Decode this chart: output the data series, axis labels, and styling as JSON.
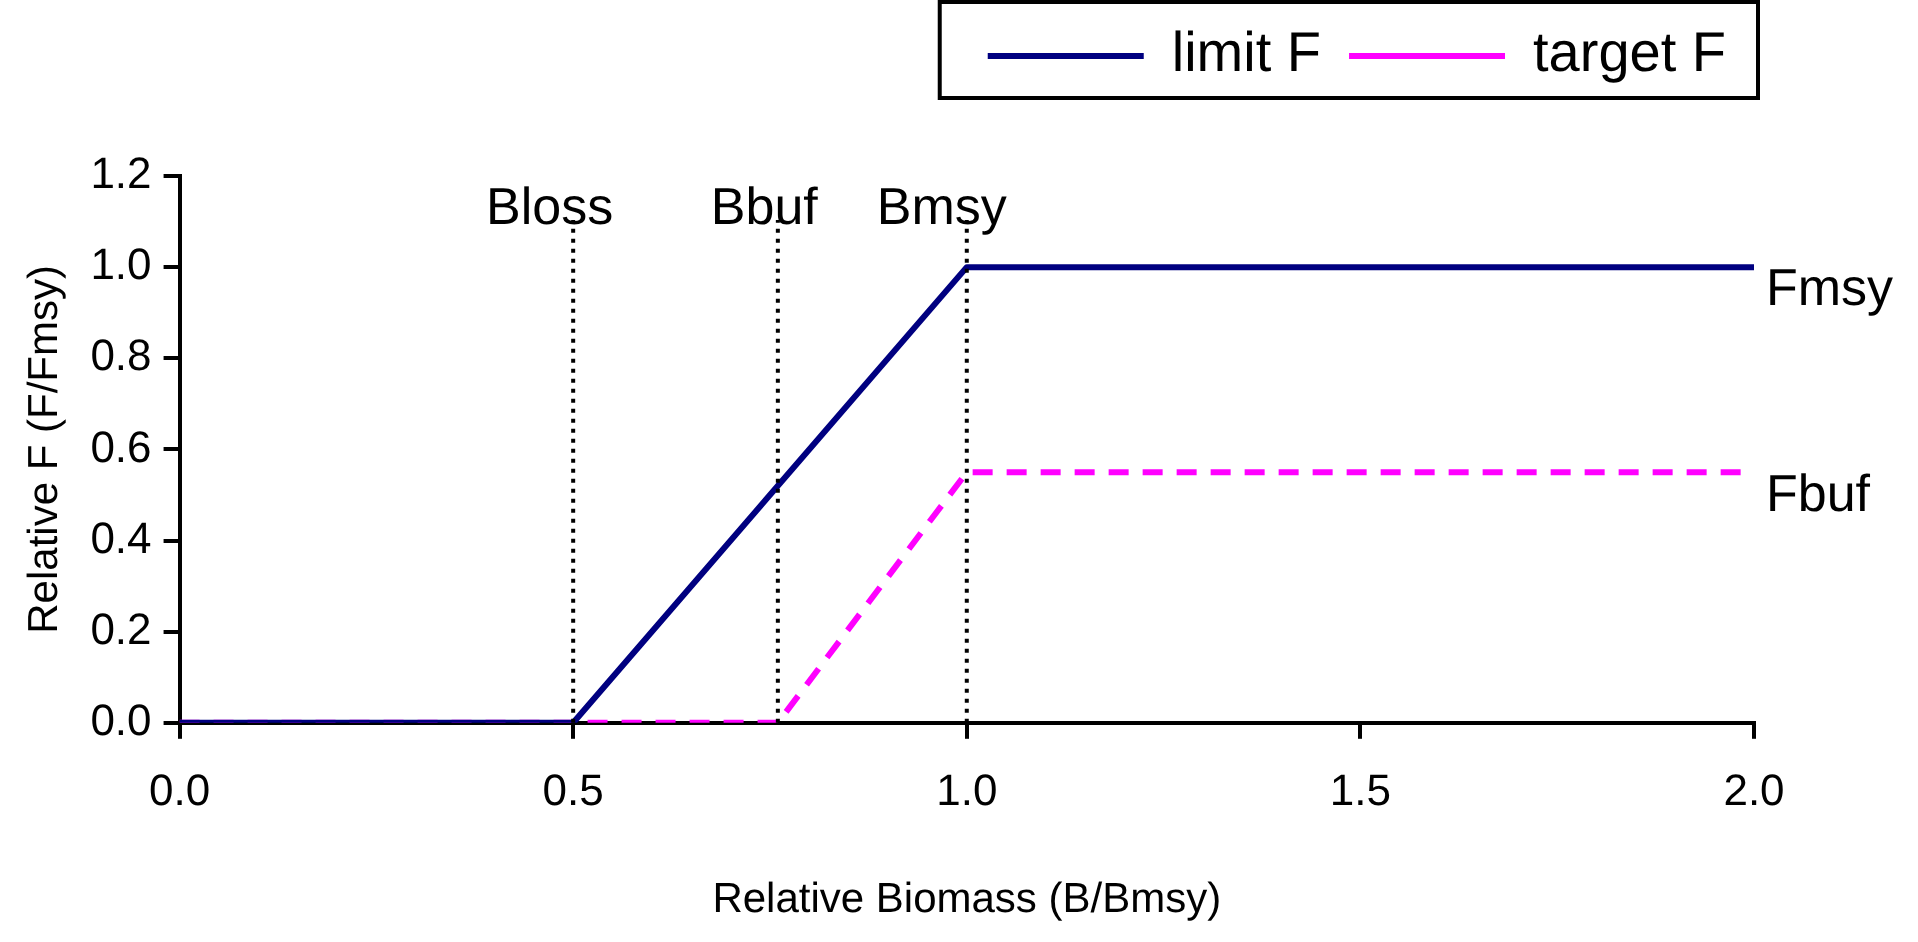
{
  "chart_data": {
    "type": "line",
    "xlabel": "Relative Biomass (B/Bmsy)",
    "ylabel": "Relative F (F/Fmsy)",
    "series": [
      {
        "name": "limit F",
        "color": "#000080",
        "x": [
          0,
          0.5,
          1.0,
          2.0
        ],
        "values": [
          0,
          0,
          1.0,
          1.0
        ],
        "line_style": "solid"
      },
      {
        "name": "target F",
        "color": "#ff00ff",
        "x": [
          0,
          0.76,
          1.0,
          2.0
        ],
        "values": [
          0,
          0,
          0.55,
          0.55
        ],
        "line_style": "dashed"
      }
    ],
    "xlim": [
      0,
      2.0
    ],
    "xticks": [
      {
        "value": 0,
        "label": "0.0"
      },
      {
        "value": 0.5,
        "label": "0.5"
      },
      {
        "value": 1,
        "label": "1.0"
      },
      {
        "value": 1.5,
        "label": "1.5"
      },
      {
        "value": 2,
        "label": "2.0"
      }
    ],
    "ylim": [
      0,
      1.2
    ],
    "yticks": [
      {
        "value": 0,
        "label": "0.0"
      },
      {
        "value": 0.2,
        "label": "0.2"
      },
      {
        "value": 0.4,
        "label": "0.4"
      },
      {
        "value": 0.6,
        "label": "0.6"
      },
      {
        "value": 0.8,
        "label": "0.8"
      },
      {
        "value": 1,
        "label": "1.0"
      },
      {
        "value": 1.2,
        "label": "1.2"
      }
    ],
    "ref_lines": [
      {
        "axis": "x",
        "value": 0.5,
        "label": "Bloss",
        "color": "#000000",
        "line_style": "dotted"
      },
      {
        "axis": "x",
        "value": 0.76,
        "label": "Bbuf",
        "color": "#000000",
        "line_style": "dotted"
      },
      {
        "axis": "x",
        "value": 1.0,
        "label": "Bmsy",
        "color": "#000000",
        "line_style": "dotted"
      }
    ],
    "annotations": [
      {
        "text": "Fmsy",
        "x": 2.0,
        "y": 1.0
      },
      {
        "text": "Fbuf",
        "x": 2.0,
        "y": 0.55
      }
    ],
    "grid": false,
    "legend": "top right",
    "marker": "none"
  }
}
